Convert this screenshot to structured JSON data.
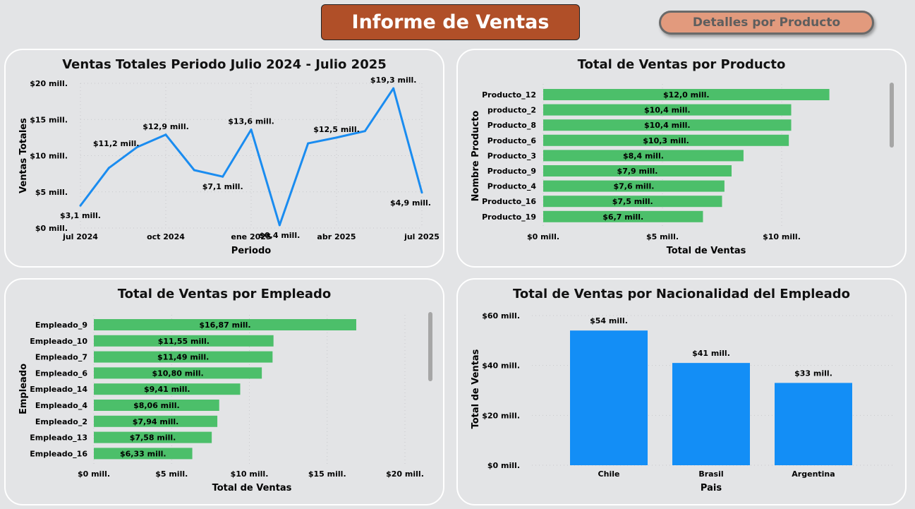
{
  "header": {
    "title": "Informe de Ventas",
    "nav_button": "Detalles por Producto"
  },
  "colors": {
    "header_bg": "#b04f28",
    "nav_bg": "#e29a7d",
    "line": "#1a8cf0",
    "green_bar": "#4cbf6a",
    "blue_bar": "#138ef6",
    "panel_bg": "#e3e4e6"
  },
  "charts": {
    "line": {
      "title": "Ventas Totales Periodo Julio 2024 - Julio 2025",
      "type": "line",
      "xlabel": "Periodo",
      "ylabel": "Ventas Totales",
      "x_ticks": [
        "jul 2024",
        "oct 2024",
        "ene 2025",
        "abr 2025",
        "jul 2025"
      ],
      "y_ticks": [
        "$0 mill.",
        "$5 mill.",
        "$10 mill.",
        "$15 mill.",
        "$20 mill."
      ],
      "x": [
        "2024-07",
        "2024-08",
        "2024-09",
        "2024-10",
        "2024-11",
        "2024-12",
        "2025-01",
        "2025-02",
        "2025-03",
        "2025-04",
        "2025-05",
        "2025-06",
        "2025-07"
      ],
      "values": [
        3.1,
        8.3,
        11.2,
        12.9,
        8.0,
        7.1,
        13.6,
        0.4,
        11.7,
        12.5,
        13.4,
        19.3,
        4.9
      ],
      "labels": [
        "$3,1 mill.",
        "",
        "$11,2 mill.",
        "$12,9 mill.",
        "",
        "$7,1 mill.",
        "$13,6 mill.",
        "$0,4 mill.",
        "",
        "$12,5 mill.",
        "",
        "$19,3 mill.",
        "$4,9 mill."
      ],
      "ylim": [
        0,
        20
      ]
    },
    "products": {
      "title": "Total de Ventas por Producto",
      "type": "bar",
      "xlabel": "Total de Ventas",
      "ylabel": "Nombre Producto",
      "x_ticks": [
        "$0 mill.",
        "$5 mill.",
        "$10 mill."
      ],
      "categories": [
        "Producto_12",
        "producto_2",
        "Producto_8",
        "Producto_6",
        "Producto_3",
        "Producto_9",
        "Producto_4",
        "Producto_16",
        "Producto_19"
      ],
      "values": [
        12.0,
        10.4,
        10.4,
        10.3,
        8.4,
        7.9,
        7.6,
        7.5,
        6.7
      ],
      "labels": [
        "$12,0 mill.",
        "$10,4 mill.",
        "$10,4 mill.",
        "$10,3 mill.",
        "$8,4 mill.",
        "$7,9 mill.",
        "$7,6 mill.",
        "$7,5 mill.",
        "$6,7 mill."
      ]
    },
    "employees": {
      "title": "Total de Ventas por Empleado",
      "type": "bar",
      "xlabel": "Total de Ventas",
      "ylabel": "Empleado",
      "x_ticks": [
        "$0 mill.",
        "$5 mill.",
        "$10 mill.",
        "$15 mill.",
        "$20 mill."
      ],
      "categories": [
        "Empleado_9",
        "Empleado_10",
        "Empleado_7",
        "Empleado_6",
        "Empleado_14",
        "Empleado_4",
        "Empleado_2",
        "Empleado_13",
        "Empleado_16"
      ],
      "values": [
        16.87,
        11.55,
        11.49,
        10.8,
        9.41,
        8.06,
        7.94,
        7.58,
        6.33
      ],
      "labels": [
        "$16,87 mill.",
        "$11,55 mill.",
        "$11,49 mill.",
        "$10,80 mill.",
        "$9,41 mill.",
        "$8,06 mill.",
        "$7,94 mill.",
        "$7,58 mill.",
        "$6,33 mill."
      ]
    },
    "nationality": {
      "title": "Total de Ventas por Nacionalidad del Empleado",
      "type": "bar",
      "xlabel": "Pais",
      "ylabel": "Total de Ventas",
      "y_ticks": [
        "$0 mill.",
        "$20 mill.",
        "$40 mill.",
        "$60 mill."
      ],
      "categories": [
        "Chile",
        "Brasil",
        "Argentina"
      ],
      "values": [
        54,
        41,
        33
      ],
      "labels": [
        "$54 mill.",
        "$41 mill.",
        "$33 mill."
      ],
      "ylim": [
        0,
        60
      ]
    }
  },
  "chart_data": [
    {
      "type": "line",
      "title": "Ventas Totales Periodo Julio 2024 - Julio 2025",
      "xlabel": "Periodo",
      "ylabel": "Ventas Totales",
      "x": [
        "2024-07",
        "2024-08",
        "2024-09",
        "2024-10",
        "2024-11",
        "2024-12",
        "2025-01",
        "2025-02",
        "2025-03",
        "2025-04",
        "2025-05",
        "2025-06",
        "2025-07"
      ],
      "values": [
        3.1,
        8.3,
        11.2,
        12.9,
        8.0,
        7.1,
        13.6,
        0.4,
        11.7,
        12.5,
        13.4,
        19.3,
        4.9
      ],
      "ylim": [
        0,
        20
      ]
    },
    {
      "type": "bar",
      "title": "Total de Ventas por Producto",
      "xlabel": "Total de Ventas",
      "ylabel": "Nombre Producto",
      "categories": [
        "Producto_12",
        "producto_2",
        "Producto_8",
        "Producto_6",
        "Producto_3",
        "Producto_9",
        "Producto_4",
        "Producto_16",
        "Producto_19"
      ],
      "values": [
        12.0,
        10.4,
        10.4,
        10.3,
        8.4,
        7.9,
        7.6,
        7.5,
        6.7
      ]
    },
    {
      "type": "bar",
      "title": "Total de Ventas por Empleado",
      "xlabel": "Total de Ventas",
      "ylabel": "Empleado",
      "categories": [
        "Empleado_9",
        "Empleado_10",
        "Empleado_7",
        "Empleado_6",
        "Empleado_14",
        "Empleado_4",
        "Empleado_2",
        "Empleado_13",
        "Empleado_16"
      ],
      "values": [
        16.87,
        11.55,
        11.49,
        10.8,
        9.41,
        8.06,
        7.94,
        7.58,
        6.33
      ],
      "xlim": [
        0,
        20
      ]
    },
    {
      "type": "bar",
      "title": "Total de Ventas por Nacionalidad del Empleado",
      "xlabel": "Pais",
      "ylabel": "Total de Ventas",
      "categories": [
        "Chile",
        "Brasil",
        "Argentina"
      ],
      "values": [
        54,
        41,
        33
      ],
      "ylim": [
        0,
        60
      ]
    }
  ]
}
